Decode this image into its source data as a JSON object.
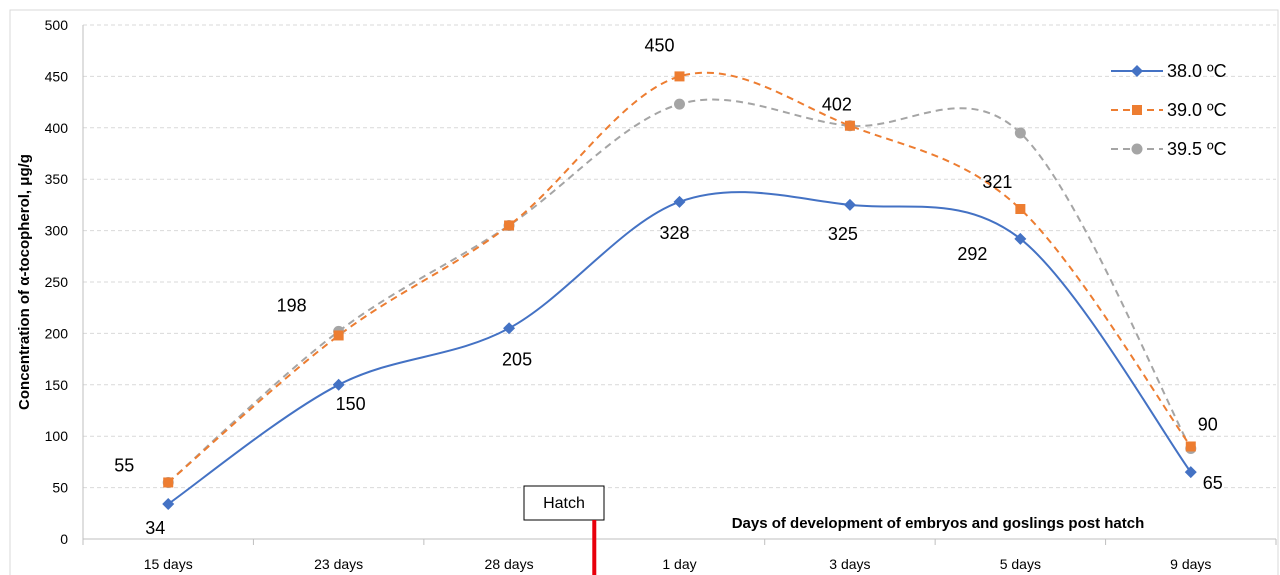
{
  "chart_data": {
    "type": "line",
    "title": "",
    "xlabel": "Days of development of embryos and goslings post hatch",
    "ylabel": "Concentration of α-tocopherol, μg/g",
    "ylim": [
      0,
      500
    ],
    "yticks": [
      "0",
      "50",
      "100",
      "150",
      "200",
      "250",
      "300",
      "350",
      "400",
      "450",
      "500"
    ],
    "categories": [
      "15 days",
      "23 days",
      "28 days",
      "1 day",
      "3 days",
      "5 days",
      "9 days"
    ],
    "grid": "horizontal dashed",
    "legend_position": "top-right",
    "marker_annotation": {
      "label": "Hatch",
      "between": [
        "28 days",
        "1 day"
      ],
      "color": "#e8000b"
    },
    "series": [
      {
        "name": "38.0 ºC",
        "values": [
          34,
          150,
          205,
          328,
          325,
          292,
          65
        ],
        "color": "#4472c4",
        "marker": "diamond",
        "line": "solid"
      },
      {
        "name": "39.0 ºC",
        "values": [
          55,
          198,
          305,
          450,
          402,
          321,
          90
        ],
        "color": "#ed7d31",
        "marker": "square",
        "line": "dashed"
      },
      {
        "name": "39.5 ºC",
        "values": [
          55,
          202,
          305,
          423,
          402,
          395,
          88
        ],
        "color": "#a5a5a5",
        "marker": "circle",
        "line": "dashed"
      }
    ],
    "data_labels": [
      {
        "text": "34",
        "category": "15 days",
        "value": 34
      },
      {
        "text": "55",
        "category": "15 days",
        "value": 55
      },
      {
        "text": "150",
        "category": "23 days",
        "value": 150
      },
      {
        "text": "198",
        "category": "23 days",
        "value": 198
      },
      {
        "text": "205",
        "category": "28 days",
        "value": 205
      },
      {
        "text": "328",
        "category": "1 day",
        "value": 328
      },
      {
        "text": "450",
        "category": "1 day",
        "value": 450
      },
      {
        "text": "325",
        "category": "3 days",
        "value": 325
      },
      {
        "text": "402",
        "category": "3 days",
        "value": 402
      },
      {
        "text": "292",
        "category": "5 days",
        "value": 292
      },
      {
        "text": "321",
        "category": "5 days",
        "value": 321
      },
      {
        "text": "65",
        "category": "9 days",
        "value": 65
      },
      {
        "text": "90",
        "category": "9 days",
        "value": 90
      }
    ]
  }
}
